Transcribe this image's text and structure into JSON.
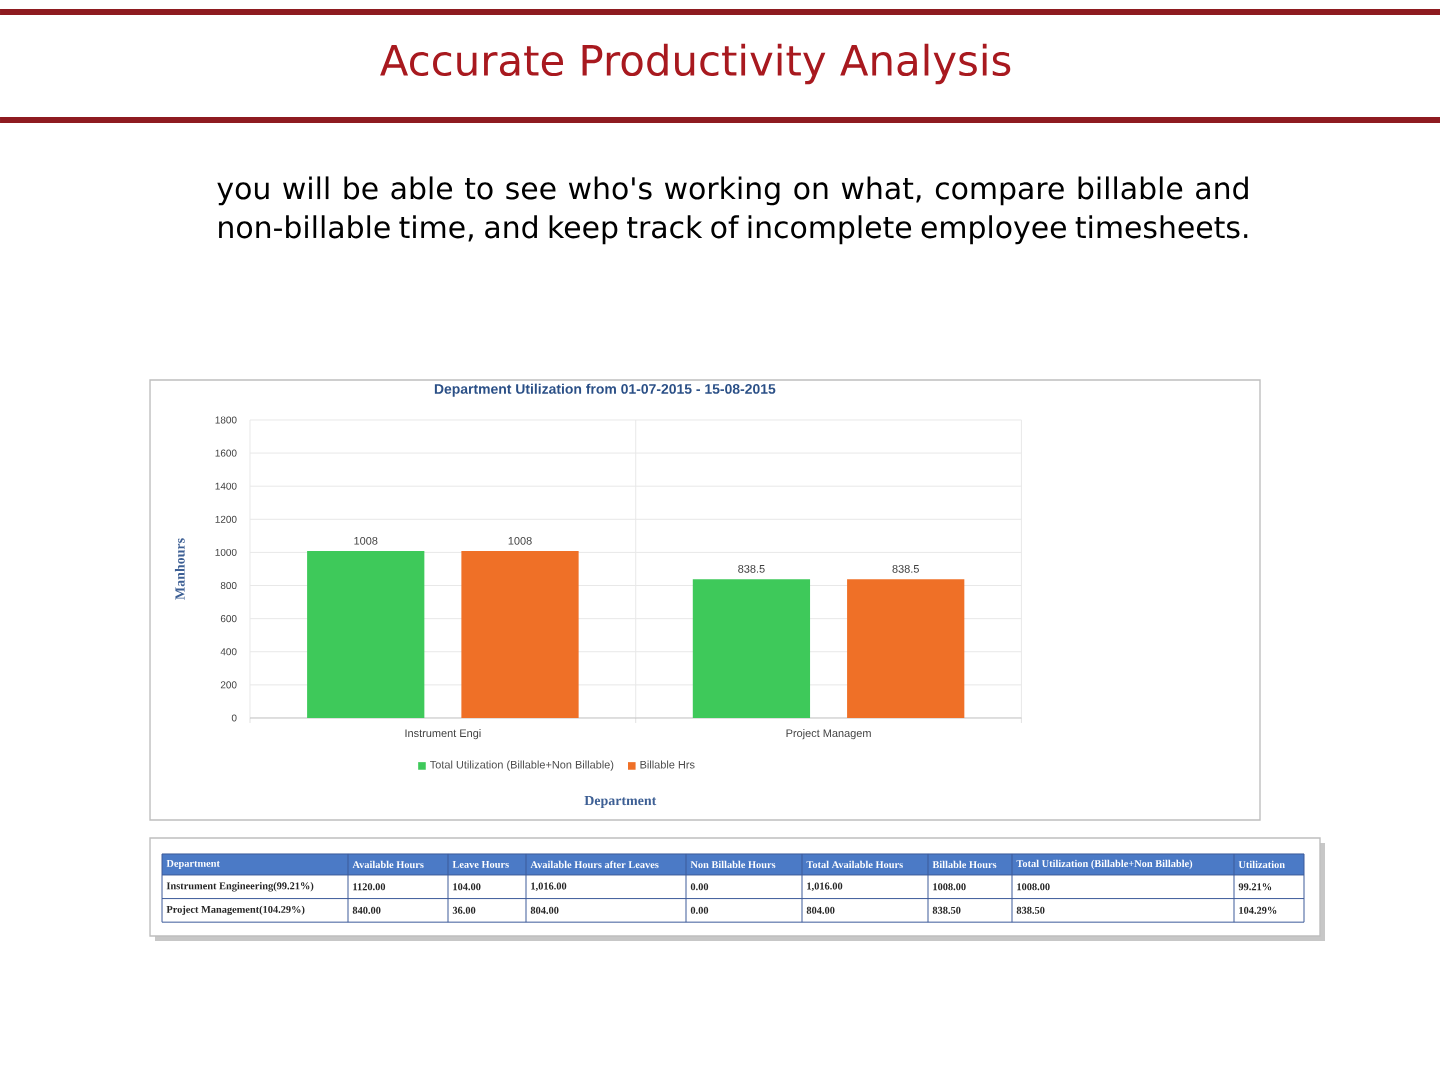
{
  "chart_data": [
    {
      "type": "other",
      "title": "Accurate Productivity Analysis",
      "annotations": [
        "you will be able to see who's working on what, compare billable and non-billable time, and keep track of incomplete employee timesheets."
      ]
    },
    {
      "type": "bar",
      "title": "Department Utilization from 01-07-2015 - 15-08-2015",
      "xlabel": "Department",
      "ylabel": "Manhours",
      "categories": [
        "Instrument Engi",
        "Project Managem"
      ],
      "series": [
        {
          "name": "Total Utilization (Billable+Non Billable)",
          "color": "#3ec95a",
          "values": [
            1008,
            838.5
          ]
        },
        {
          "name": "Billable Hrs",
          "color": "#ef7027",
          "values": [
            1008,
            838.5
          ]
        }
      ],
      "ylim": [
        0,
        1800
      ],
      "yticks": [
        0,
        200,
        400,
        600,
        800,
        1000,
        1200,
        1400,
        1600,
        1800
      ],
      "grid": true,
      "legend": "bottom",
      "data_labels": true
    },
    {
      "type": "other",
      "ylabel": "Department",
      "categories": [
        "Available Hours",
        "Leave Hours",
        "Available Hours after Leaves",
        "Non Billable Hours",
        "Total Available Hours",
        "Billable Hours",
        "Total Utilization (Billable+Non Billable)",
        "Utilization"
      ],
      "series": [
        {
          "name": "Instrument Engineering(99.21%)",
          "values": [
            1120,
            104,
            1016,
            0,
            1016,
            1008,
            1008,
            99.21
          ],
          "value_labels": [
            "1120.00",
            "104.00",
            "1,016.00",
            "0.00",
            "1,016.00",
            "1008.00",
            "1008.00",
            "99.21%"
          ]
        },
        {
          "name": "Project Management(104.29%)",
          "values": [
            840,
            36,
            804,
            0,
            804,
            838.5,
            838.5,
            104.29
          ],
          "value_labels": [
            "840.00",
            "36.00",
            "804.00",
            "0.00",
            "804.00",
            "838.50",
            "838.50",
            "104.29%"
          ]
        }
      ]
    }
  ]
}
